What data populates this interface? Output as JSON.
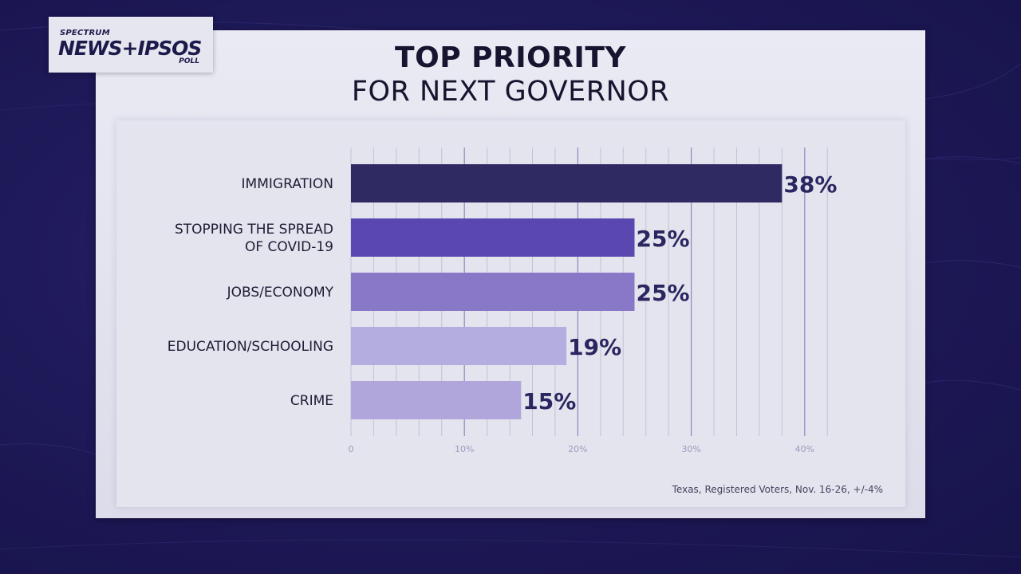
{
  "logo": {
    "top": "SPECTRUM",
    "main": "NEWS+IPSOS",
    "bottom": "POLL"
  },
  "title": "TOP PRIORITY",
  "subtitle": "FOR NEXT GOVERNOR",
  "footnote": "Texas, Registered Voters, Nov. 16-26, +/-4%",
  "chart_data": {
    "type": "bar",
    "orientation": "horizontal",
    "categories": [
      [
        "IMMIGRATION"
      ],
      [
        "STOPPING THE SPREAD",
        "OF COVID-19"
      ],
      [
        "JOBS/ECONOMY"
      ],
      [
        "EDUCATION/SCHOOLING"
      ],
      [
        "CRIME"
      ]
    ],
    "values": [
      38,
      25,
      25,
      19,
      15
    ],
    "value_labels": [
      "38%",
      "25%",
      "25%",
      "19%",
      "15%"
    ],
    "bar_colors": [
      "#2f2a62",
      "#5a48b0",
      "#8978c8",
      "#b4ade0",
      "#b0a6dc"
    ],
    "xlim": [
      0,
      42
    ],
    "ticks": [
      0,
      10,
      20,
      30,
      40
    ],
    "tick_labels": [
      "0",
      "10%",
      "20%",
      "30%",
      "40%"
    ],
    "grid": true
  }
}
